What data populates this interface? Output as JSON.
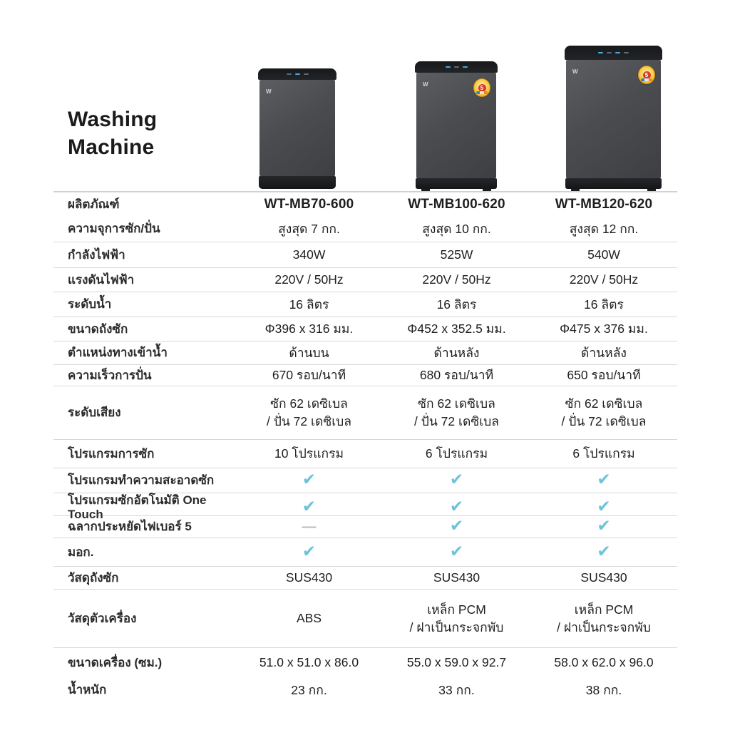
{
  "title": {
    "line1": "Washing",
    "line2": "Machine"
  },
  "colors": {
    "check": "#6cc3da",
    "dash": "#b9b9b9",
    "divider": "#d8d8d8",
    "title_text": "#1b1b1b"
  },
  "products": [
    {
      "model": "WT-MB70-600",
      "energy_badge": false,
      "badge_label": ""
    },
    {
      "model": "WT-MB100-620",
      "energy_badge": true,
      "badge_label": "5"
    },
    {
      "model": "WT-MB120-620",
      "energy_badge": true,
      "badge_label": "5"
    }
  ],
  "table": {
    "rows": [
      {
        "label": "ผลิตภัณฑ์",
        "type": "model",
        "divider": true,
        "values": [
          "WT-MB70-600",
          "WT-MB100-620",
          "WT-MB120-620"
        ]
      },
      {
        "label": "ความจุการซัก/ปั่น",
        "divider": false,
        "values": [
          "สูงสุด 7 กก.",
          "สูงสุด 10 กก.",
          "สูงสุด 12 กก."
        ]
      },
      {
        "label": "กำลังไฟฟ้า",
        "divider": true,
        "values": [
          "340W",
          "525W",
          "540W"
        ]
      },
      {
        "label": "แรงดันไฟฟ้า",
        "divider": true,
        "values": [
          "220V / 50Hz",
          "220V / 50Hz",
          "220V / 50Hz"
        ]
      },
      {
        "label": "ระดับน้ำ",
        "divider": true,
        "values": [
          "16 ลิตร",
          "16 ลิตร",
          "16 ลิตร"
        ]
      },
      {
        "label": "ขนาดถังซัก",
        "divider": true,
        "values": [
          "Φ396 x 316 มม.",
          "Φ452 x 352.5 มม.",
          "Φ475 x 376 มม."
        ]
      },
      {
        "label": "ตำแหน่งทางเข้าน้ำ",
        "divider": true,
        "values": [
          "ด้านบน",
          "ด้านหลัง",
          "ด้านหลัง"
        ]
      },
      {
        "label": "ความเร็วการปั่น",
        "divider": true,
        "values": [
          "670 รอบ/นาที",
          "680 รอบ/นาที",
          "650 รอบ/นาที"
        ]
      },
      {
        "label": "ระดับเสียง",
        "divider": true,
        "values": [
          [
            "ซัก 62 เดซิเบล",
            "/ ปั่น 72 เดซิเบล"
          ],
          [
            "ซัก 62 เดซิเบล",
            "/ ปั่น 72 เดซิเบล"
          ],
          [
            "ซัก 62 เดซิเบล",
            "/ ปั่น 72 เดซิเบล"
          ]
        ]
      },
      {
        "label": "โปรแกรมการซัก",
        "divider": true,
        "values": [
          "10 โปรแกรม",
          "6 โปรแกรม",
          "6 โปรแกรม"
        ]
      },
      {
        "label": "โปรแกรมทำความสะอาดซัก",
        "divider": true,
        "values": [
          "✓",
          "✓",
          "✓"
        ]
      },
      {
        "label": "โปรแกรมซักอัตโนมัติ One Touch",
        "divider": true,
        "values": [
          "✓",
          "✓",
          "✓"
        ]
      },
      {
        "label": "ฉลากประหยัดไฟเบอร์ 5",
        "divider": true,
        "values": [
          "—",
          "✓",
          "✓"
        ]
      },
      {
        "label": "มอก.",
        "divider": true,
        "values": [
          "✓",
          "✓",
          "✓"
        ]
      },
      {
        "label": "วัสดุถังซัก",
        "divider": true,
        "values": [
          "SUS430",
          "SUS430",
          "SUS430"
        ]
      },
      {
        "label": "วัสดุตัวเครื่อง",
        "divider": true,
        "values": [
          "ABS",
          [
            "เหล็ก PCM",
            "/ ฝาเป็นกระจกพับ"
          ],
          [
            "เหล็ก PCM",
            "/ ฝาเป็นกระจกพับ"
          ]
        ]
      },
      {
        "label": "ขนาดเครื่อง (ซม.)",
        "divider": true,
        "values": [
          "51.0 x 51.0 x 86.0",
          "55.0 x 59.0 x 92.7",
          "58.0 x 62.0 x 96.0"
        ]
      },
      {
        "label": "น้ำหนัก",
        "divider": false,
        "values": [
          "23 กก.",
          "33 กก.",
          "38 กก."
        ]
      }
    ]
  }
}
